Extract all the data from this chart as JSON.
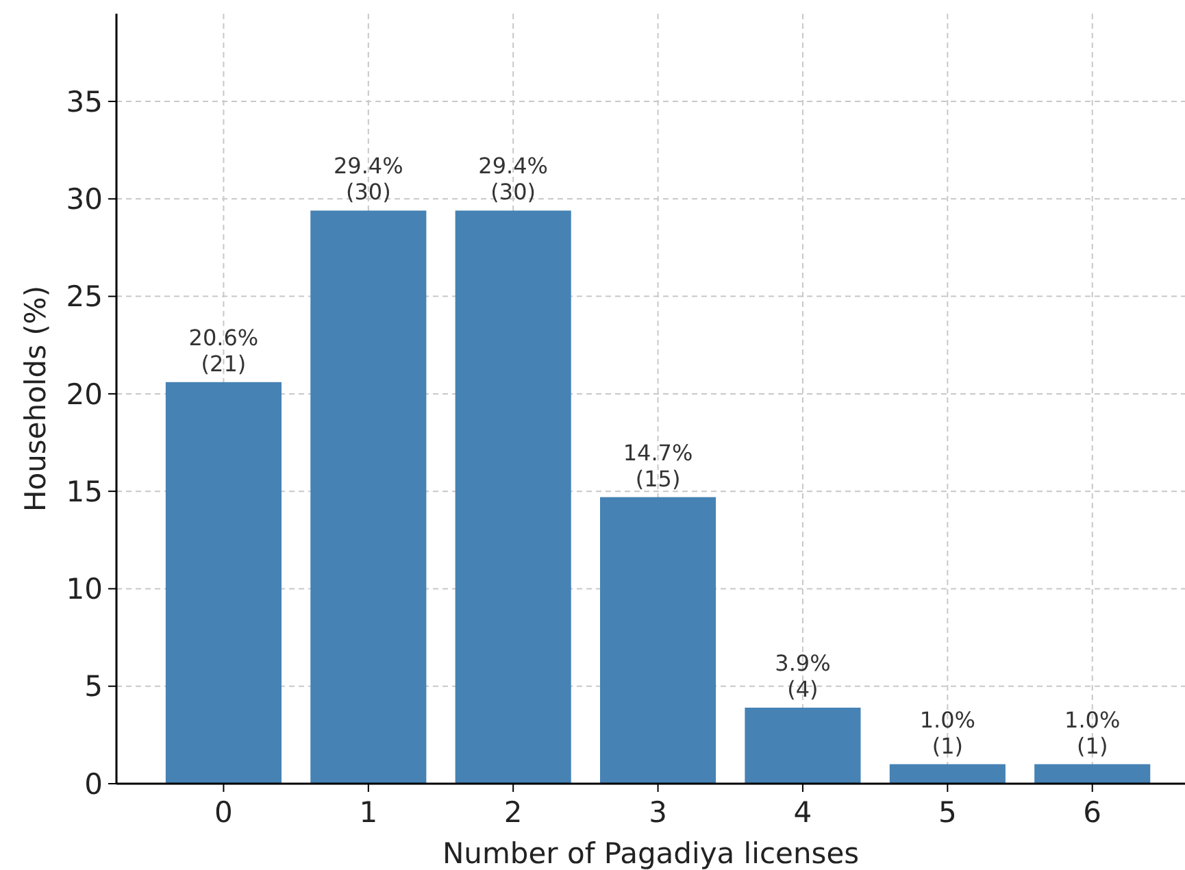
{
  "chart_data": {
    "type": "bar",
    "xlabel": "Number of Pagadiya licenses",
    "ylabel": "Households (%)",
    "categories": [
      "0",
      "1",
      "2",
      "3",
      "4",
      "5",
      "6"
    ],
    "values": [
      20.6,
      29.4,
      29.4,
      14.7,
      3.9,
      1.0,
      1.0
    ],
    "value_labels": [
      "20.6%\n(21)",
      "29.4%\n(30)",
      "29.4%\n(30)",
      "14.7%\n(15)",
      "3.9%\n(4)",
      "1.0%\n(1)",
      "1.0%\n(1)"
    ],
    "color": "#4682b4",
    "ylim": [
      0,
      39.5
    ],
    "yticks": [
      0,
      5,
      10,
      15,
      20,
      25,
      30,
      35
    ],
    "grid": true
  }
}
